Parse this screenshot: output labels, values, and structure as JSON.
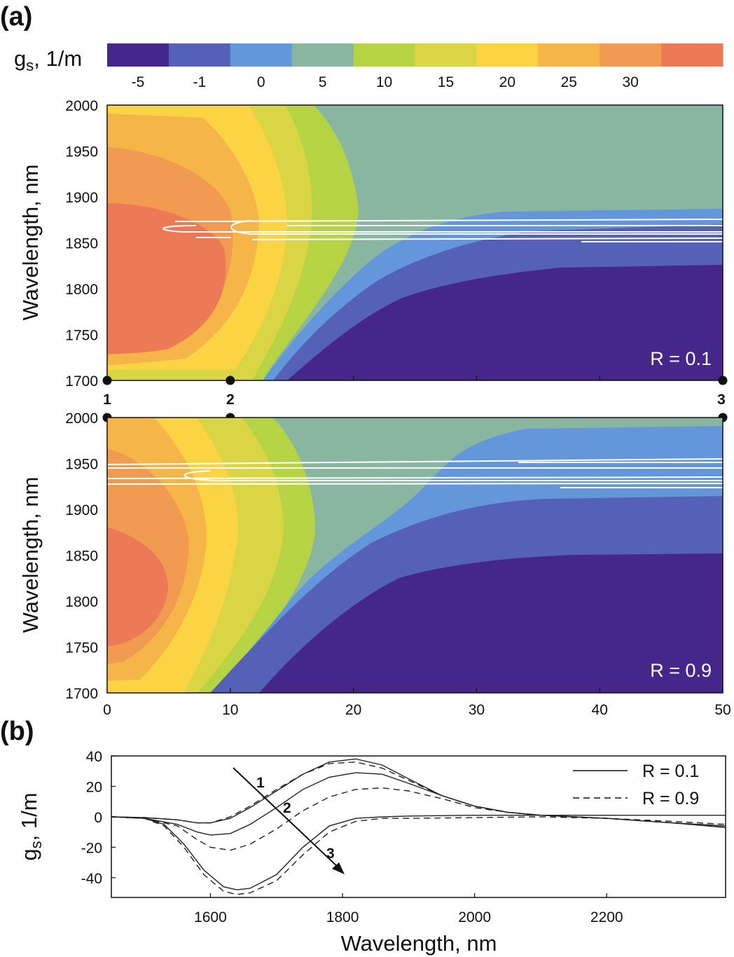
{
  "panel_a_label": "(a)",
  "panel_b_label": "(b)",
  "colorbar": {
    "label": "g",
    "label_sub": "s",
    "label_unit": ", 1/m",
    "colors": [
      "#45268a",
      "#5561b6",
      "#6496dc",
      "#89b6a0",
      "#b6d343",
      "#dad545",
      "#fad443",
      "#f6b548",
      "#f19a52",
      "#ed7a56"
    ],
    "tick_labels": [
      "-5",
      "-1",
      "0",
      "5",
      "10",
      "15",
      "20",
      "25",
      "30"
    ]
  },
  "chart_data": [
    {
      "type": "heatmap",
      "title": "",
      "annotation": "R = 0.1",
      "xlabel": "",
      "ylabel": "Wavelength, nm",
      "xlim": [
        0,
        50
      ],
      "ylim": [
        1700,
        2000
      ],
      "x_ticks": [
        0,
        10,
        20,
        30,
        40,
        50
      ],
      "y_ticks": [
        "1700",
        "1750",
        "1800",
        "1850",
        "1900",
        "1950",
        "2000"
      ],
      "markers": [
        {
          "label": "1",
          "x": 0
        },
        {
          "label": "2",
          "x": 10
        },
        {
          "label": "3",
          "x": 50
        }
      ]
    },
    {
      "type": "heatmap",
      "title": "",
      "annotation": "R = 0.9",
      "xlabel": "",
      "ylabel": "Wavelength, nm",
      "xlim": [
        0,
        50
      ],
      "ylim": [
        1700,
        2000
      ],
      "x_ticks": [
        "0",
        "10",
        "20",
        "30",
        "40",
        "50"
      ],
      "y_ticks": [
        "1700",
        "1750",
        "1800",
        "1850",
        "1900",
        "1950",
        "2000"
      ]
    },
    {
      "type": "line",
      "title": "",
      "xlabel": "Wavelength, nm",
      "ylabel_main": "g",
      "ylabel_sub": "s",
      "ylabel_unit": ", 1/m",
      "xlim": [
        1450,
        2380
      ],
      "ylim": [
        -53,
        40
      ],
      "x_ticks": [
        "1600",
        "1800",
        "2000",
        "2200"
      ],
      "y_ticks": [
        "40",
        "20",
        "0",
        "-20",
        "-40"
      ],
      "legend": [
        {
          "label": "R = 0.1",
          "style": "solid"
        },
        {
          "label": "R = 0.9",
          "style": "dashed"
        }
      ],
      "curve_labels": [
        "1",
        "2",
        "3"
      ],
      "series": [
        {
          "name": "1, R = 0.1",
          "x": [
            1450,
            1500,
            1550,
            1580,
            1600,
            1630,
            1660,
            1700,
            1740,
            1780,
            1820,
            1860,
            1900,
            1950,
            2000,
            2050,
            2100,
            2150,
            2200,
            2300,
            2380
          ],
          "y": [
            0,
            -0.5,
            -2,
            -4,
            -4,
            -1,
            6,
            17,
            28,
            36,
            38,
            34,
            25,
            14,
            7,
            3,
            1,
            0,
            -1,
            -4,
            -6
          ]
        },
        {
          "name": "1, R = 0.9",
          "x": [
            1450,
            1500,
            1550,
            1580,
            1600,
            1630,
            1660,
            1700,
            1740,
            1780,
            1820,
            1860,
            1900,
            1950,
            2000,
            2050,
            2100,
            2150,
            2200,
            2300,
            2380
          ],
          "y": [
            0,
            -0.5,
            -2,
            -4,
            -4,
            0,
            7,
            18,
            28,
            35,
            36,
            32,
            24,
            14,
            7,
            3,
            1,
            0,
            -1,
            -4,
            -6
          ]
        },
        {
          "name": "2, R = 0.1",
          "x": [
            1450,
            1500,
            1550,
            1580,
            1600,
            1630,
            1660,
            1700,
            1740,
            1780,
            1820,
            1860,
            1900,
            1950,
            2000,
            2050,
            2100,
            2150,
            2200,
            2300,
            2380
          ],
          "y": [
            0,
            -1,
            -5,
            -10,
            -12,
            -11,
            -5,
            6,
            18,
            26,
            29,
            28,
            22,
            14,
            7,
            3,
            1,
            0,
            -1,
            -4,
            -7
          ]
        },
        {
          "name": "2, R = 0.9",
          "x": [
            1450,
            1500,
            1550,
            1580,
            1600,
            1630,
            1660,
            1700,
            1740,
            1780,
            1820,
            1860,
            1900,
            1950,
            2000,
            2050,
            2100,
            2150,
            2200,
            2300,
            2380
          ],
          "y": [
            0,
            -1,
            -6,
            -15,
            -20,
            -22,
            -18,
            -8,
            4,
            13,
            18,
            19,
            17,
            12,
            6,
            3,
            1,
            0,
            -1,
            -4,
            -7
          ]
        },
        {
          "name": "3, R = 0.1",
          "x": [
            1450,
            1500,
            1530,
            1560,
            1590,
            1620,
            1640,
            1660,
            1700,
            1740,
            1780,
            1820,
            1860,
            1900,
            2000,
            2100,
            2200,
            2300,
            2380
          ],
          "y": [
            0,
            -1,
            -5,
            -18,
            -35,
            -46,
            -48,
            -47,
            -38,
            -20,
            -6,
            -1,
            0,
            0.5,
            1,
            1,
            1,
            1,
            1
          ]
        },
        {
          "name": "3, R = 0.9",
          "x": [
            1450,
            1500,
            1530,
            1560,
            1590,
            1620,
            1640,
            1660,
            1700,
            1740,
            1780,
            1820,
            1860,
            1900,
            2000,
            2100,
            2200,
            2300,
            2380
          ],
          "y": [
            0,
            -1,
            -6,
            -20,
            -38,
            -49,
            -51,
            -50,
            -42,
            -25,
            -10,
            -3,
            -1,
            -1,
            -0.5,
            0,
            -1,
            -3,
            -5
          ]
        }
      ]
    }
  ]
}
